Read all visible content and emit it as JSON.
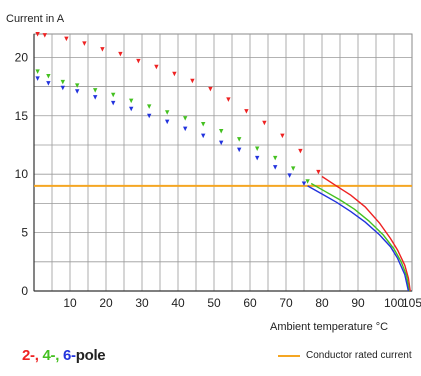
{
  "chart_data": {
    "type": "line",
    "ylabel": "Current in A",
    "xlabel": "Ambient temperature °C",
    "xlim": [
      0,
      105
    ],
    "ylim": [
      0,
      22
    ],
    "x_ticks": [
      10,
      20,
      30,
      40,
      50,
      60,
      70,
      80,
      90,
      100,
      105
    ],
    "y_ticks": [
      0,
      5,
      10,
      15,
      20
    ],
    "grid": true,
    "series": [
      {
        "name": "2-pole",
        "color": "#ee2222",
        "dotted": {
          "x": [
            1,
            3,
            9,
            14,
            19,
            24,
            29,
            34,
            39,
            44,
            49,
            54,
            59,
            64,
            69,
            74,
            79
          ],
          "y": [
            22,
            21.9,
            21.6,
            21.2,
            20.7,
            20.3,
            19.7,
            19.2,
            18.6,
            18.0,
            17.3,
            16.4,
            15.4,
            14.4,
            13.3,
            12.0,
            10.2
          ]
        },
        "line": {
          "x": [
            80,
            84,
            88,
            92,
            96,
            99,
            101,
            103,
            104,
            104.5
          ],
          "y": [
            9.8,
            9.0,
            8.2,
            7.2,
            5.8,
            4.5,
            3.5,
            2.2,
            1.1,
            0
          ]
        }
      },
      {
        "name": "4-pole",
        "color": "#44c020",
        "dotted": {
          "x": [
            1,
            4,
            8,
            12,
            17,
            22,
            27,
            32,
            37,
            42,
            47,
            52,
            57,
            62,
            67,
            72,
            76
          ],
          "y": [
            18.8,
            18.4,
            17.9,
            17.6,
            17.2,
            16.8,
            16.3,
            15.8,
            15.3,
            14.8,
            14.3,
            13.7,
            13.0,
            12.2,
            11.4,
            10.5,
            9.4
          ]
        },
        "line": {
          "x": [
            77,
            81,
            85,
            89,
            93,
            97,
            100,
            102,
            103.5,
            104.2
          ],
          "y": [
            9.2,
            8.5,
            7.8,
            7.0,
            6.0,
            4.8,
            3.6,
            2.5,
            1.3,
            0
          ]
        }
      },
      {
        "name": "6-pole",
        "color": "#2233dd",
        "dotted": {
          "x": [
            1,
            4,
            8,
            12,
            17,
            22,
            27,
            32,
            37,
            42,
            47,
            52,
            57,
            62,
            67,
            71,
            75
          ],
          "y": [
            18.2,
            17.8,
            17.4,
            17.1,
            16.6,
            16.1,
            15.6,
            15.0,
            14.5,
            13.9,
            13.3,
            12.7,
            12.1,
            11.4,
            10.6,
            9.9,
            9.2
          ]
        },
        "line": {
          "x": [
            76,
            80,
            84,
            88,
            92,
            96,
            99,
            101,
            103,
            104
          ],
          "y": [
            9.0,
            8.3,
            7.6,
            6.8,
            5.9,
            4.8,
            3.8,
            2.8,
            1.4,
            0
          ]
        }
      }
    ],
    "reference_line": {
      "name": "Conductor rated current",
      "y": 9,
      "color": "#f5a623"
    }
  },
  "legend": {
    "poles": [
      {
        "label": "2-,",
        "color": "#ee2222"
      },
      {
        "label": "4-,",
        "color": "#44c020"
      },
      {
        "label": "6-",
        "color": "#2233dd"
      }
    ],
    "poles_suffix": "pole",
    "rated": "Conductor rated current"
  }
}
